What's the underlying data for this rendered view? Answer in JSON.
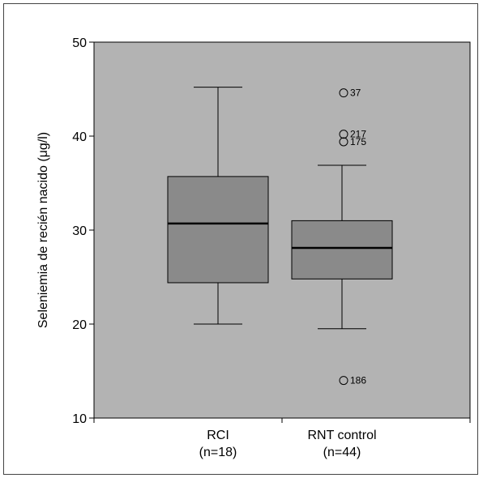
{
  "chart_data": {
    "type": "box",
    "ylabel": "Seleniemia de recién nacido (μg/l)",
    "xlabel": "",
    "ylim": [
      10,
      50
    ],
    "yticks": [
      10,
      20,
      30,
      40,
      50
    ],
    "grid": false,
    "colors": {
      "plot_background": "#b3b3b3",
      "box_fill": "#8a8a8a",
      "stroke": "#000000"
    },
    "categories": [
      {
        "label": "RCI",
        "n_label": "(n=18)"
      },
      {
        "label": "RNT control",
        "n_label": "(n=44)"
      }
    ],
    "boxes": [
      {
        "category": "RCI",
        "min": 20.0,
        "q1": 24.4,
        "median": 30.7,
        "q3": 35.7,
        "max": 45.2,
        "outliers": []
      },
      {
        "category": "RNT control",
        "min": 19.5,
        "q1": 24.8,
        "median": 28.1,
        "q3": 31.0,
        "max": 36.9,
        "outliers": [
          {
            "value": 44.6,
            "label": "37"
          },
          {
            "value": 40.2,
            "label": "217"
          },
          {
            "value": 39.4,
            "label": "175"
          },
          {
            "value": 14.0,
            "label": "186"
          }
        ]
      }
    ]
  }
}
